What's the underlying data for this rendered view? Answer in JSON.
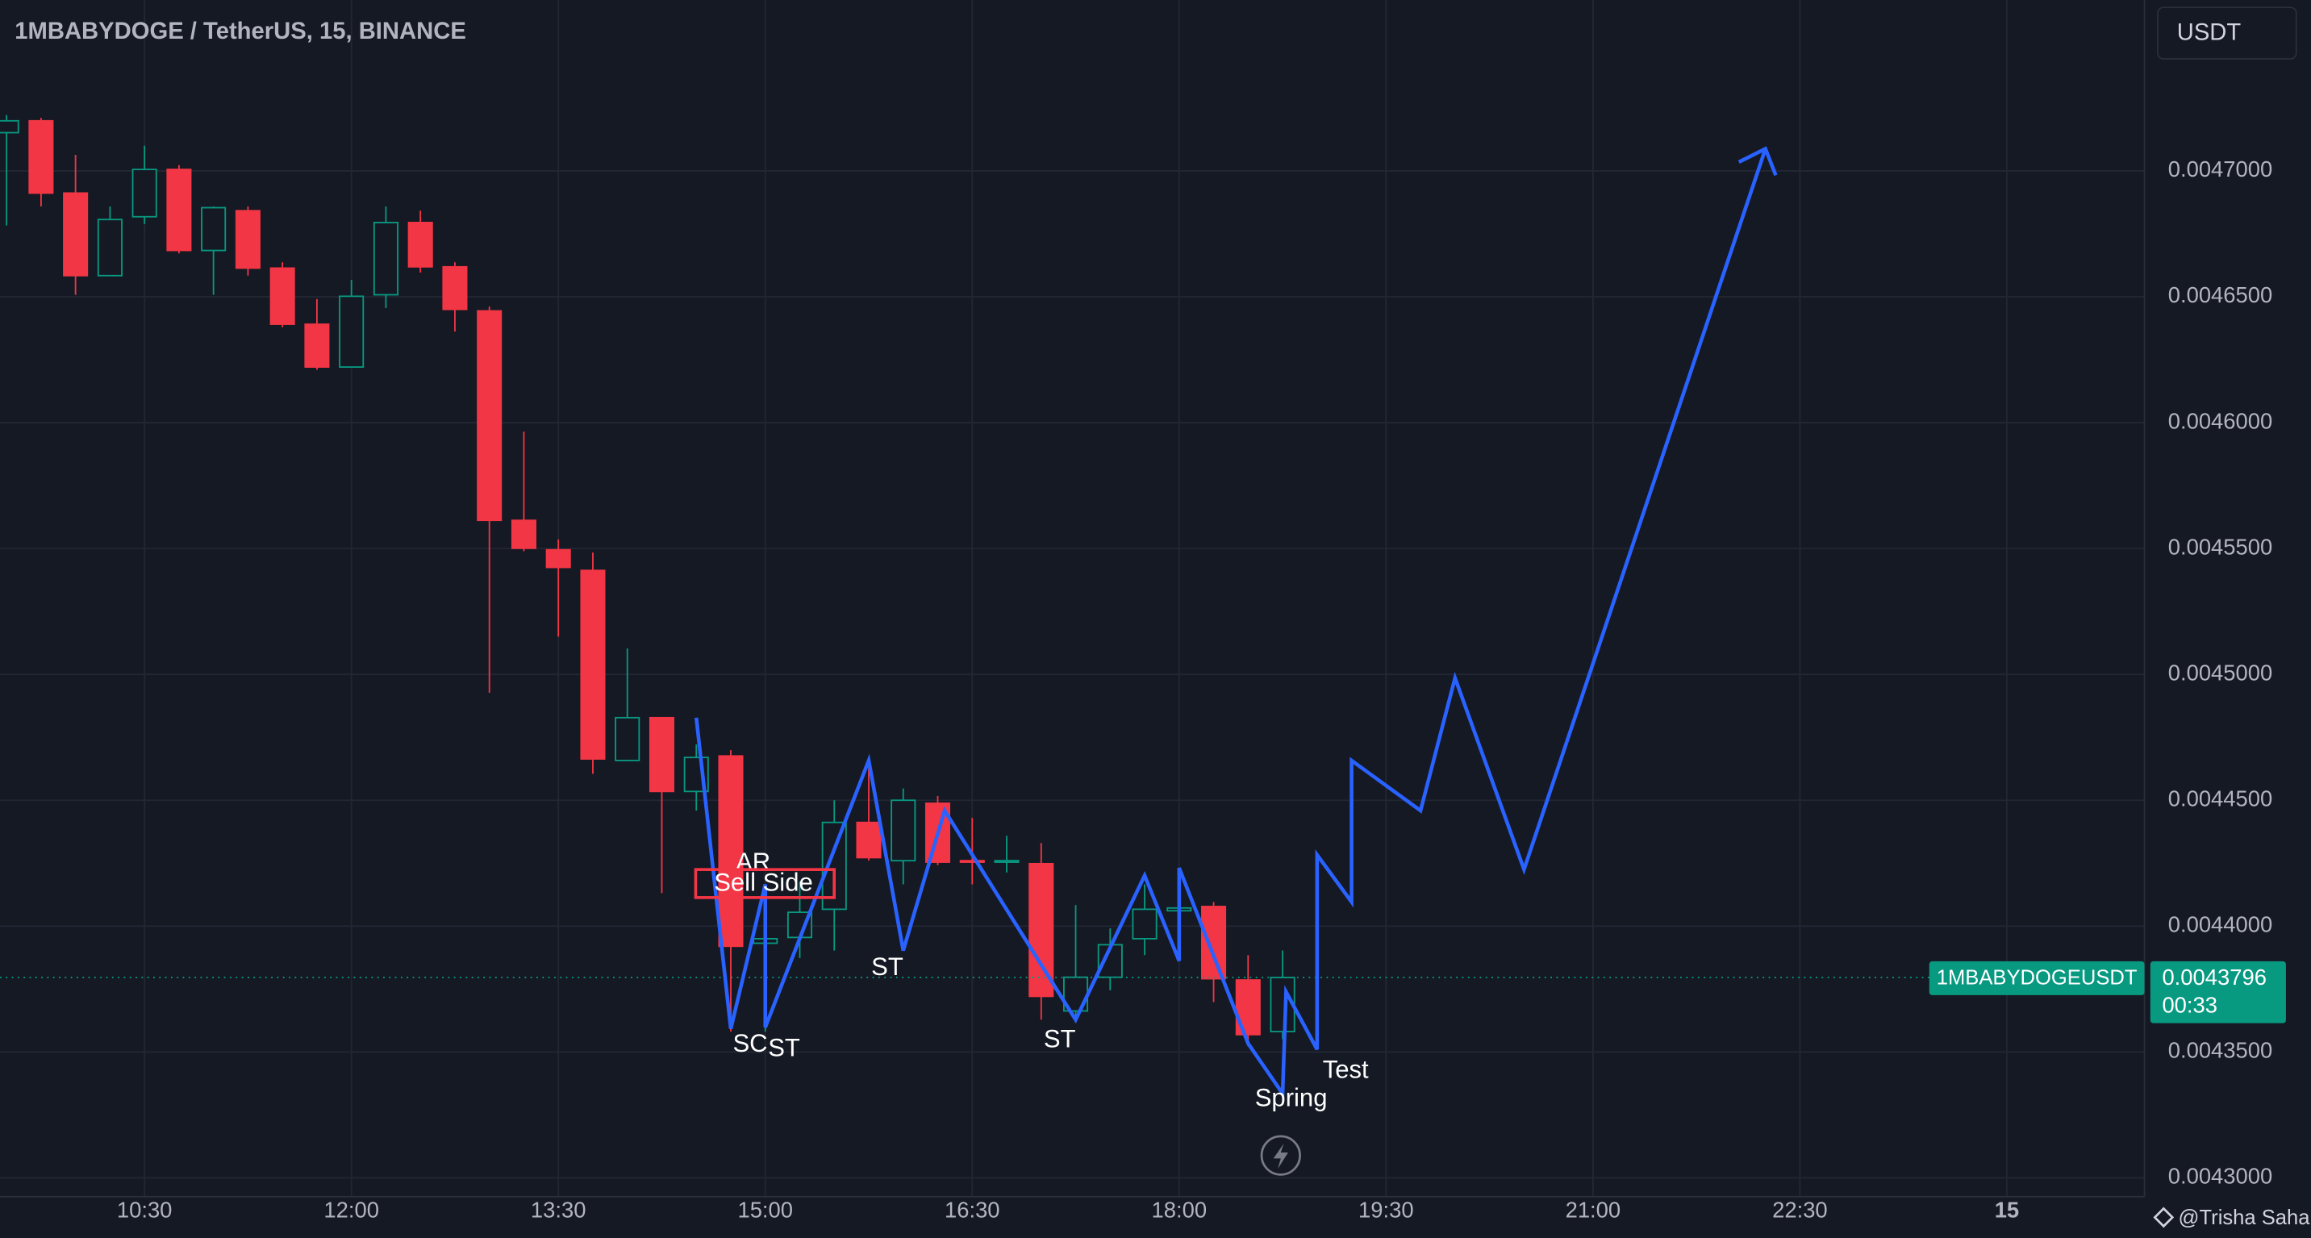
{
  "chart_data": {
    "type": "candlestick",
    "title": "1MBABYDOGE / TetherUS, 15, BINANCE",
    "currency": "USDT",
    "symbol_label": "1MBABYDOGEUSDT",
    "last_price": 0.0043796,
    "countdown": "00:33",
    "watermark": "@Trisha Saha",
    "up_color": "#089981",
    "down_color": "#f23645",
    "grid": true,
    "candles": {
      "open": [
        0.0047152,
        0.0047199,
        0.0046912,
        0.0046584,
        0.0046818,
        0.0047006,
        0.0046684,
        0.0046842,
        0.0046614,
        0.0046391,
        0.0046221,
        0.0046508,
        0.0046795,
        0.0046619,
        0.0046444,
        0.0045612,
        0.0045495,
        0.0045413,
        0.0044658,
        0.0044828,
        0.0044535,
        0.0044676,
        0.0043932,
        0.0043955,
        0.0044067,
        0.0044412,
        0.004426,
        0.0044488,
        0.004426,
        0.0044254,
        0.0044248,
        0.0043663,
        0.0043797,
        0.004395,
        0.0044061,
        0.0044078,
        0.0043786,
        0.0043581
      ],
      "high": [
        0.0047222,
        0.0047211,
        0.0047064,
        0.0046859,
        0.00471,
        0.0047023,
        0.0046859,
        0.0046859,
        0.0046637,
        0.0046491,
        0.0046567,
        0.0046859,
        0.0046842,
        0.0046637,
        0.0046461,
        0.0045964,
        0.0045536,
        0.0045484,
        0.0045103,
        0.0044828,
        0.0044722,
        0.0044699,
        0.0044166,
        0.0044178,
        0.00445,
        0.0044664,
        0.0044547,
        0.0044517,
        0.004443,
        0.0044359,
        0.004433,
        0.0044084,
        0.0043991,
        0.0044166,
        0.0044166,
        0.0044096,
        0.0043885,
        0.0043903
      ],
      "low": [
        0.0046783,
        0.0046859,
        0.0046508,
        0.0046584,
        0.0046789,
        0.0046672,
        0.0046508,
        0.0046584,
        0.0046379,
        0.004621,
        0.0046221,
        0.0046455,
        0.0046596,
        0.0046362,
        0.0044927,
        0.0045489,
        0.004515,
        0.0044605,
        0.0044658,
        0.0044131,
        0.0044459,
        0.0043581,
        0.0043581,
        0.0043873,
        0.0043903,
        0.004426,
        0.0044166,
        0.0044242,
        0.0044166,
        0.0044213,
        0.0043628,
        0.0043628,
        0.0043745,
        0.0043885,
        0.0043932,
        0.0043698,
        0.0043522,
        0.0043551
      ],
      "close": [
        0.0047199,
        0.0046912,
        0.0046584,
        0.0046807,
        0.0047006,
        0.0046684,
        0.0046854,
        0.0046614,
        0.0046391,
        0.0046221,
        0.0046502,
        0.0046795,
        0.0046619,
        0.004645,
        0.0045612,
        0.0045501,
        0.0045425,
        0.0044664,
        0.0044828,
        0.0044535,
        0.004467,
        0.004392,
        0.004395,
        0.0044055,
        0.0044412,
        0.0044272,
        0.00445,
        0.0044254,
        0.0044254,
        0.004426,
        0.0043721,
        0.0043797,
        0.0043926,
        0.0044067,
        0.0044072,
        0.0043791,
        0.0043569,
        0.0043796
      ]
    },
    "projection": {
      "color": "#2962ff",
      "x": [
        20,
        21,
        22,
        22,
        25,
        26,
        27.2,
        31,
        33,
        34,
        34,
        36,
        37,
        37.1,
        38,
        38,
        39,
        39,
        41,
        42,
        44,
        51
      ],
      "values": [
        0.0044828,
        0.0043592,
        0.0044166,
        0.0043598,
        0.0044658,
        0.0043903,
        0.0044459,
        0.0043628,
        0.0044201,
        0.0043862,
        0.0044231,
        0.0043534,
        0.0043335,
        0.0043739,
        0.004351,
        0.0044283,
        0.0044096,
        0.0044658,
        0.0044459,
        0.0044986,
        0.0044225,
        0.0047088
      ]
    },
    "annotations": [
      "SC",
      "ST",
      "AR",
      "Sell Side",
      "ST",
      "ST",
      "Spring",
      "Test"
    ],
    "xlim": [
      -0.19,
      61.99
    ],
    "xticks": [
      {
        "value": 4,
        "label": "10:30"
      },
      {
        "value": 10,
        "label": "12:00"
      },
      {
        "value": 16,
        "label": "13:30"
      },
      {
        "value": 22,
        "label": "15:00"
      },
      {
        "value": 28,
        "label": "16:30"
      },
      {
        "value": 34,
        "label": "18:00"
      },
      {
        "value": 40,
        "label": "19:30"
      },
      {
        "value": 46,
        "label": "21:00"
      },
      {
        "value": 52,
        "label": "22:30"
      },
      {
        "value": 58,
        "label": "15"
      }
    ],
    "ylim": [
      0.0042925,
      0.0047679
    ],
    "yticks": [
      {
        "value": 0.0043,
        "label": "0.0043000"
      },
      {
        "value": 0.00435,
        "label": "0.0043500"
      },
      {
        "value": 0.0044,
        "label": "0.0044000"
      },
      {
        "value": 0.00445,
        "label": "0.0044500"
      },
      {
        "value": 0.0045,
        "label": "0.0045000"
      },
      {
        "value": 0.00455,
        "label": "0.0045500"
      },
      {
        "value": 0.0046,
        "label": "0.0046000"
      },
      {
        "value": 0.00465,
        "label": "0.0046500"
      },
      {
        "value": 0.0047,
        "label": "0.0047000"
      }
    ]
  }
}
